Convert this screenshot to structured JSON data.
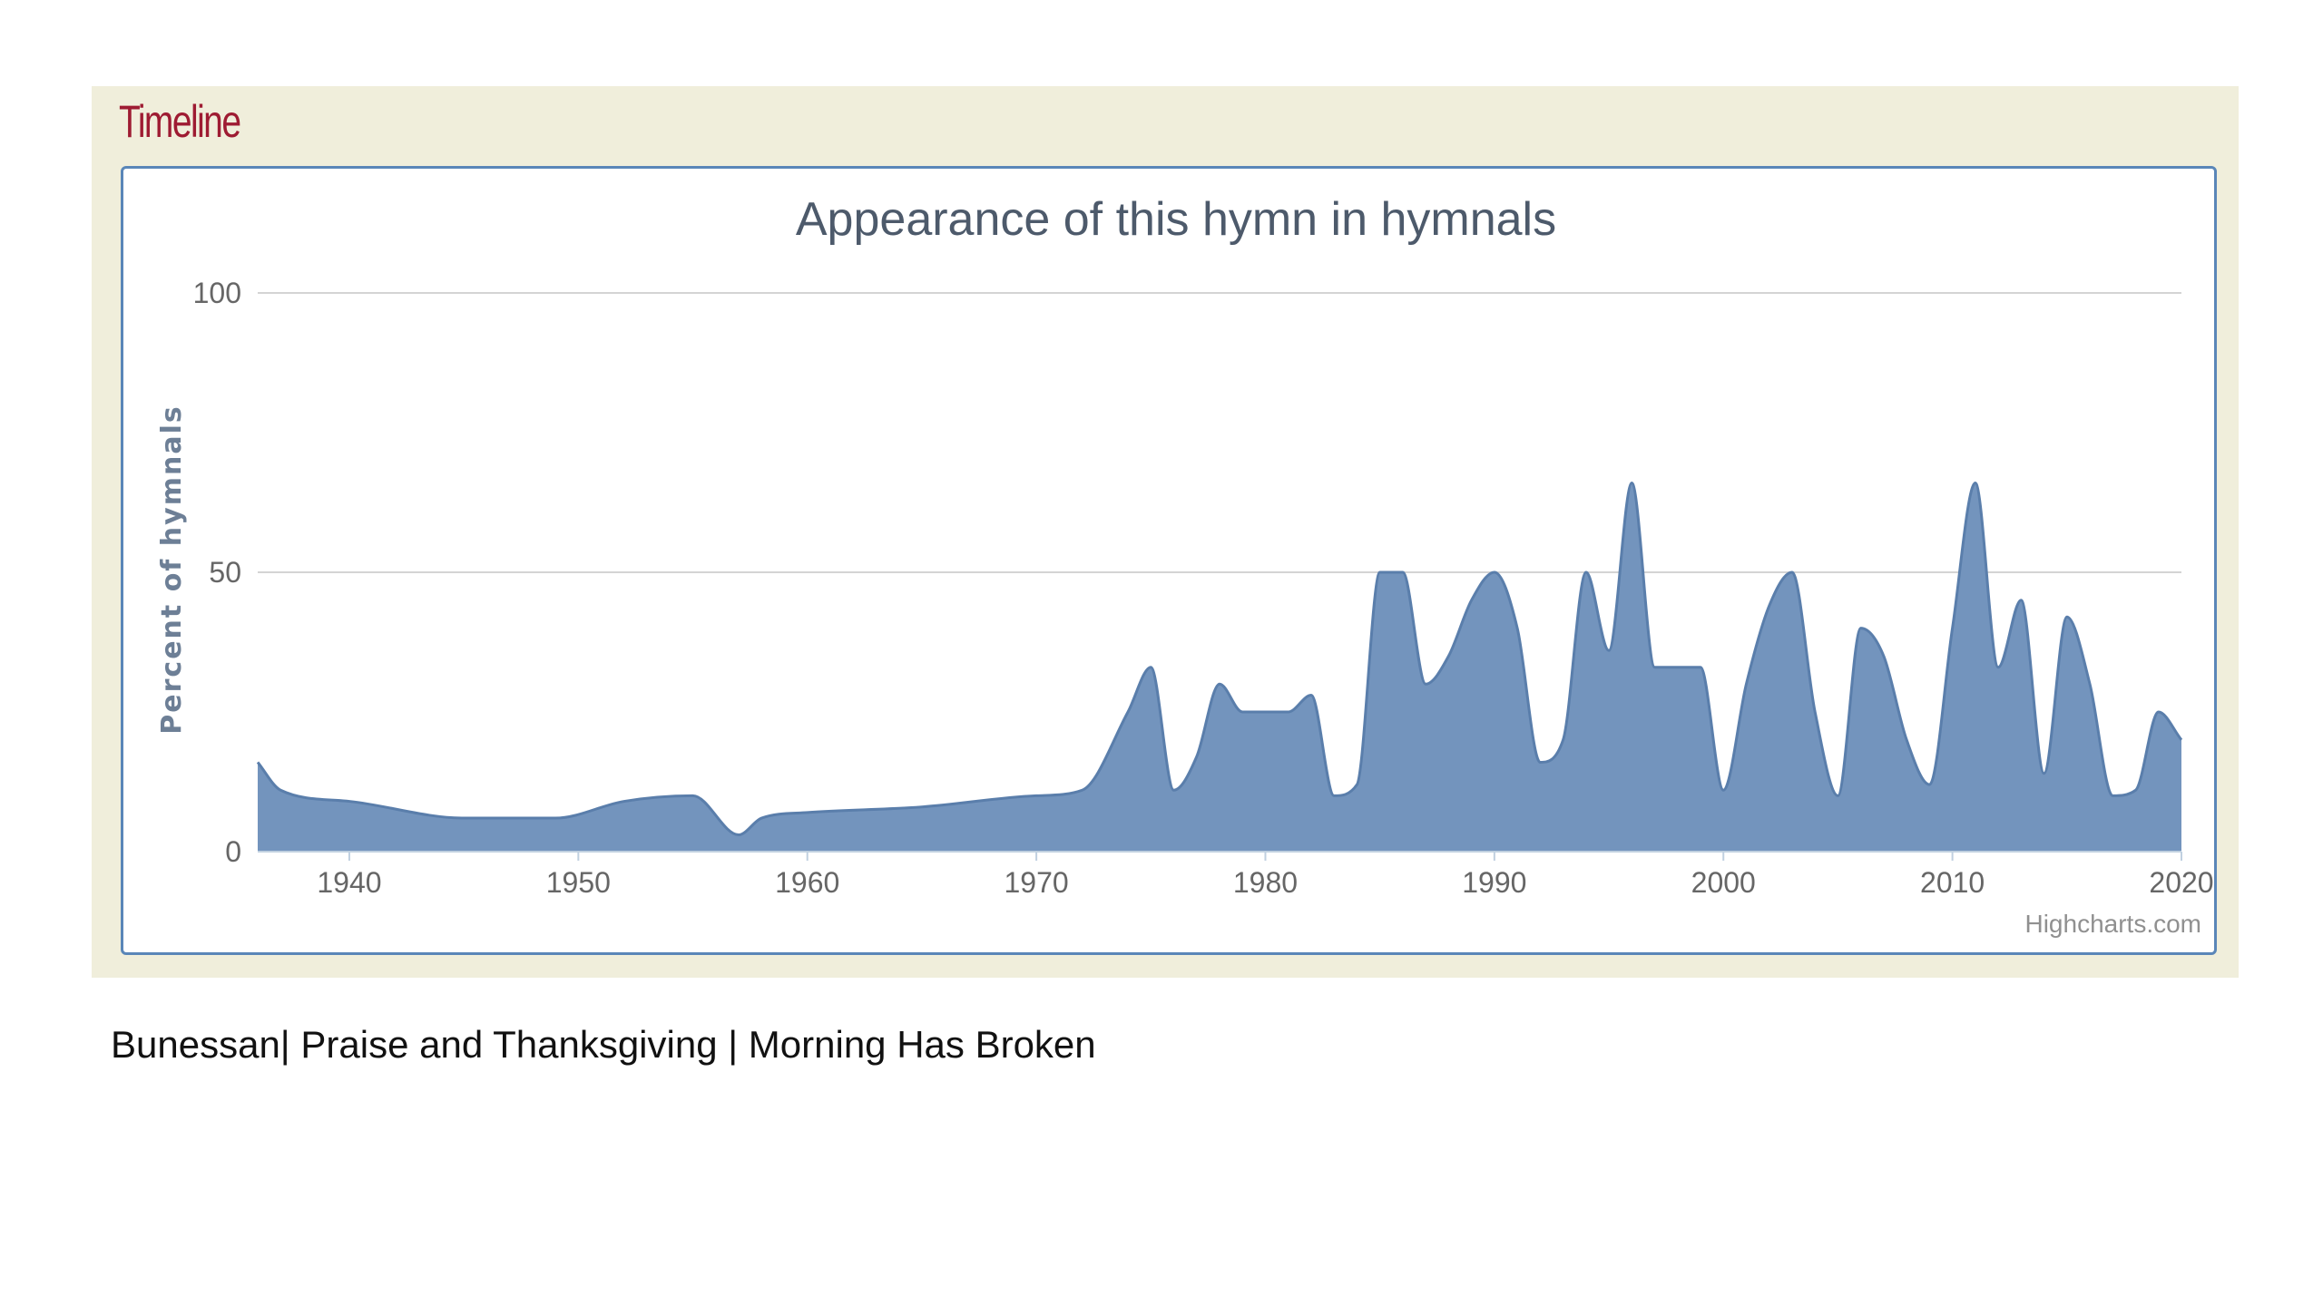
{
  "section_title": "Timeline",
  "caption": "Bunessan| Praise and Thanksgiving | Morning Has Broken",
  "colors": {
    "area_fill": "#7394bd",
    "area_line": "#5a7eab",
    "panel_bg": "#f0eedb",
    "section_title": "#9e1b32",
    "frame": "#5a86b8"
  },
  "chart_data": {
    "type": "area",
    "title": "Appearance of this hymn in hymnals",
    "ylabel": "Percent of hymnals",
    "xlabel": "",
    "xlim": [
      1936,
      2020
    ],
    "ylim": [
      0,
      100
    ],
    "yticks": [
      0,
      50,
      100
    ],
    "xtick_labels": [
      "1940",
      "1950",
      "1960",
      "1970",
      "1980",
      "1990",
      "2000",
      "2010",
      "2020"
    ],
    "grid": true,
    "credits": "Highcharts.com",
    "x": [
      1936,
      1937,
      1940,
      1945,
      1949,
      1952,
      1955,
      1957,
      1958,
      1960,
      1965,
      1970,
      1972,
      1974,
      1975,
      1976,
      1977,
      1978,
      1979,
      1980,
      1981,
      1982,
      1983,
      1984,
      1985,
      1986,
      1987,
      1988,
      1989,
      1990,
      1991,
      1992,
      1993,
      1994,
      1995,
      1996,
      1997,
      1998,
      1999,
      2000,
      2001,
      2002,
      2003,
      2004,
      2005,
      2006,
      2007,
      2008,
      2009,
      2010,
      2011,
      2012,
      2013,
      2014,
      2015,
      2016,
      2017,
      2018,
      2019,
      2020
    ],
    "values": [
      16,
      11,
      9,
      6,
      6,
      9,
      10,
      3,
      6,
      7,
      8,
      10,
      11,
      25,
      33,
      11,
      17,
      30,
      25,
      25,
      25,
      28,
      10,
      12,
      50,
      50,
      30,
      35,
      45,
      50,
      40,
      16,
      20,
      50,
      36,
      66,
      33,
      33,
      33,
      11,
      30,
      44,
      50,
      25,
      10,
      40,
      35,
      20,
      12,
      40,
      66,
      33,
      45,
      14,
      42,
      30,
      10,
      11,
      25,
      20
    ]
  }
}
